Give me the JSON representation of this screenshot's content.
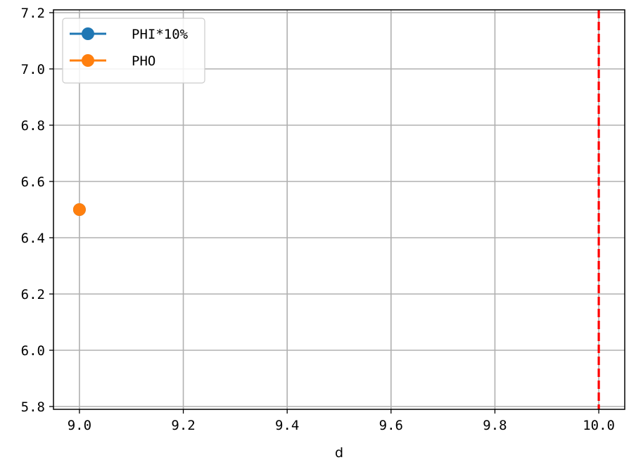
{
  "chart_data": {
    "type": "line",
    "title": "",
    "xlabel": "d",
    "ylabel": "",
    "xlim": [
      8.95,
      10.05
    ],
    "ylim": [
      5.79,
      7.21
    ],
    "xticks": [
      9.0,
      9.2,
      9.4,
      9.6,
      9.8,
      10.0
    ],
    "xtick_labels": [
      "9.0",
      "9.2",
      "9.4",
      "9.6",
      "9.8",
      "10.0"
    ],
    "yticks": [
      5.8,
      6.0,
      6.2,
      6.4,
      6.6,
      6.8,
      7.0,
      7.2
    ],
    "ytick_labels": [
      "5.8",
      "6.0",
      "6.2",
      "6.4",
      "6.6",
      "6.8",
      "7.0",
      "7.2"
    ],
    "grid": true,
    "legend_position": "top-left",
    "series": [
      {
        "name": "PHI*10%",
        "color": "#1f77b4",
        "marker": "circle",
        "x": [
          9.0
        ],
        "y": [
          6.5
        ]
      },
      {
        "name": "PHO",
        "color": "#ff7f0e",
        "marker": "circle",
        "x": [
          9.0
        ],
        "y": [
          6.5
        ]
      }
    ],
    "vlines": [
      {
        "x": 10.0,
        "color": "#ff0000",
        "style": "dashed"
      }
    ]
  }
}
